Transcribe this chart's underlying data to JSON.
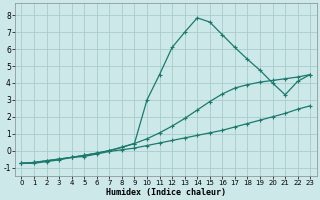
{
  "xlabel": "Humidex (Indice chaleur)",
  "bg_color": "#cce8e8",
  "grid_color": "#b0d0d0",
  "line_color": "#1a7a6e",
  "xlim": [
    -0.5,
    23.5
  ],
  "ylim": [
    -1.5,
    8.7
  ],
  "xticks": [
    0,
    1,
    2,
    3,
    4,
    5,
    6,
    7,
    8,
    9,
    10,
    11,
    12,
    13,
    14,
    15,
    16,
    17,
    18,
    19,
    20,
    21,
    22,
    23
  ],
  "yticks": [
    -1,
    0,
    1,
    2,
    3,
    4,
    5,
    6,
    7,
    8
  ],
  "line1_x": [
    0,
    1,
    2,
    3,
    4,
    5,
    6,
    7,
    8,
    9,
    10,
    11,
    12,
    13,
    14,
    15,
    16,
    17,
    18,
    19,
    20,
    21,
    22,
    23
  ],
  "line1_y": [
    -0.75,
    -0.75,
    -0.65,
    -0.55,
    -0.4,
    -0.35,
    -0.2,
    -0.05,
    0.05,
    0.15,
    0.3,
    0.45,
    0.6,
    0.75,
    0.9,
    1.05,
    1.2,
    1.4,
    1.6,
    1.8,
    2.0,
    2.2,
    2.45,
    2.65
  ],
  "line2_x": [
    0,
    1,
    2,
    3,
    4,
    5,
    6,
    7,
    8,
    9,
    10,
    11,
    12,
    13,
    14,
    15,
    16,
    17,
    18,
    19,
    20,
    21,
    22,
    23
  ],
  "line2_y": [
    -0.75,
    -0.7,
    -0.6,
    -0.5,
    -0.4,
    -0.28,
    -0.15,
    0.0,
    0.2,
    0.42,
    0.7,
    1.05,
    1.45,
    1.9,
    2.4,
    2.9,
    3.35,
    3.7,
    3.9,
    4.05,
    4.15,
    4.25,
    4.35,
    4.5
  ],
  "line3_x": [
    0,
    1,
    2,
    3,
    4,
    5,
    6,
    7,
    8,
    9,
    10,
    11,
    12,
    13,
    14,
    15,
    16,
    17,
    18,
    19,
    20,
    21,
    22,
    23
  ],
  "line3_y": [
    -0.75,
    -0.7,
    -0.6,
    -0.5,
    -0.4,
    -0.28,
    -0.15,
    0.0,
    0.2,
    0.42,
    3.0,
    4.5,
    6.1,
    7.0,
    7.85,
    7.6,
    6.85,
    6.1,
    5.4,
    4.75,
    4.0,
    3.3,
    4.1,
    4.5
  ]
}
